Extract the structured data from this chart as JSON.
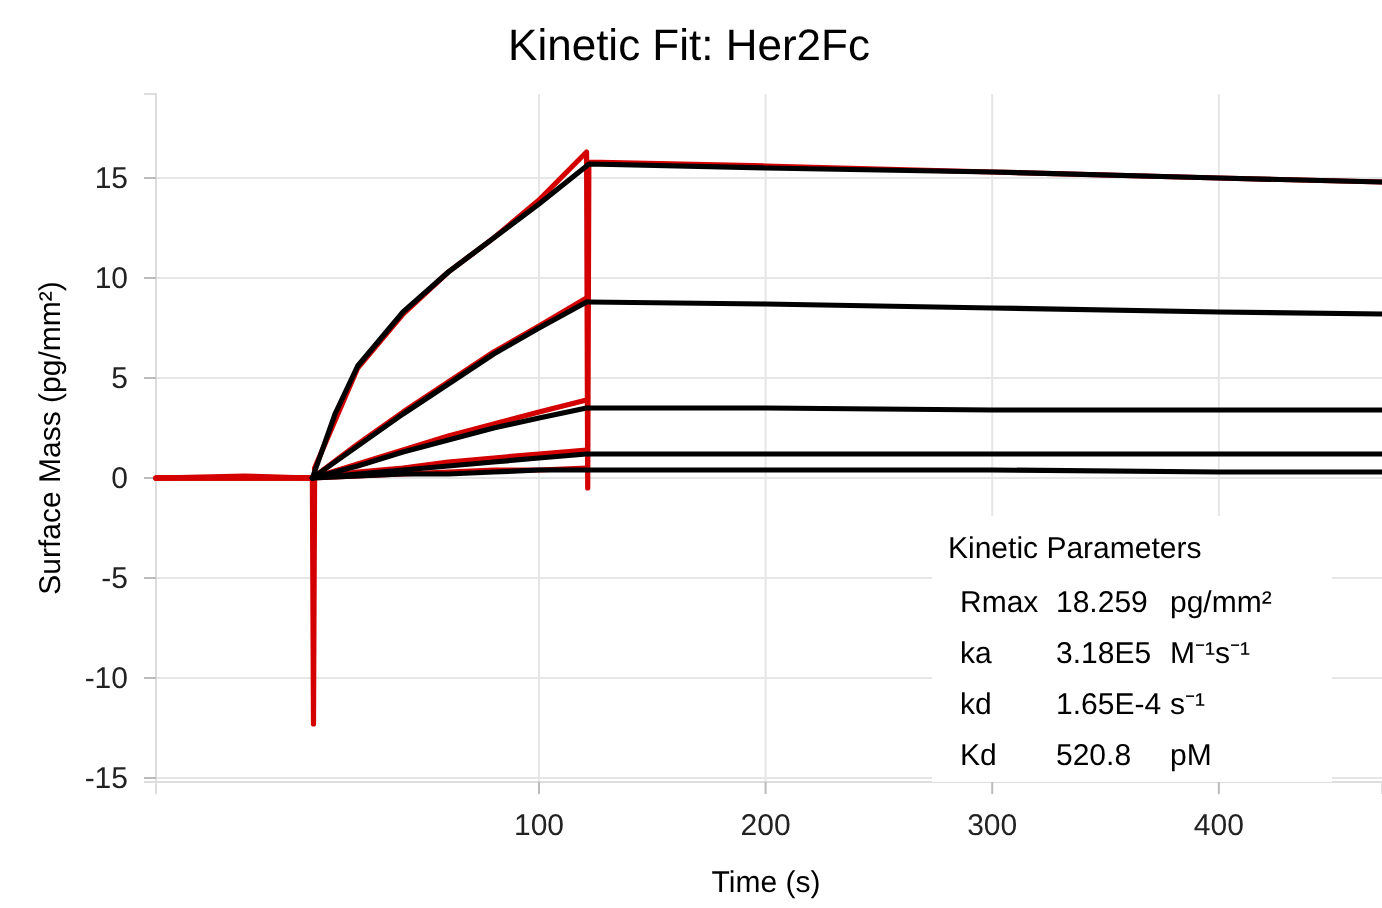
{
  "chart_data": {
    "type": "line",
    "title": "Kinetic Fit: Her2Fc",
    "xlabel": "Time (s)",
    "ylabel": "Surface Mass (pg/mm²)",
    "xlim": [
      -69,
      472
    ],
    "ylim": [
      -15.2,
      19.2
    ],
    "xticks": [
      100,
      200,
      300,
      400
    ],
    "yticks": [
      -15,
      -10,
      -5,
      0,
      5,
      10,
      15
    ],
    "grid": true,
    "marker": "none",
    "line_style": "solid",
    "series": [
      {
        "color": "#d40000",
        "x": [
          -69,
          -30,
          0,
          0.5,
          1,
          20,
          40,
          60,
          80,
          100,
          121,
          121.5,
          122,
          200,
          300,
          400,
          472
        ],
        "values": [
          0,
          0.1,
          0,
          -12.3,
          0.5,
          5.5,
          8.2,
          10.3,
          12.0,
          13.9,
          16.3,
          -0.5,
          15.8,
          15.6,
          15.3,
          15.0,
          14.8
        ]
      },
      {
        "color": "#d40000",
        "x": [
          -69,
          0,
          20,
          40,
          60,
          80,
          100,
          121
        ],
        "values": [
          0,
          0,
          1.7,
          3.3,
          4.8,
          6.3,
          7.6,
          9.0
        ]
      },
      {
        "color": "#d40000",
        "x": [
          -69,
          0,
          20,
          40,
          60,
          80,
          100,
          121
        ],
        "values": [
          0,
          0,
          0.7,
          1.4,
          2.1,
          2.7,
          3.3,
          3.9
        ]
      },
      {
        "color": "#d40000",
        "x": [
          -69,
          0,
          20,
          40,
          60,
          80,
          100,
          121
        ],
        "values": [
          0,
          0,
          0.3,
          0.5,
          0.8,
          1.0,
          1.2,
          1.4
        ]
      },
      {
        "color": "#d40000",
        "x": [
          -69,
          0,
          20,
          40,
          60,
          80,
          100,
          121
        ],
        "values": [
          0,
          0,
          0.1,
          0.2,
          0.3,
          0.4,
          0.4,
          0.5
        ]
      },
      {
        "color": "#000000",
        "x": [
          0,
          10,
          20,
          40,
          60,
          80,
          100,
          121,
          122,
          200,
          300,
          400,
          472
        ],
        "values": [
          0,
          3.2,
          5.6,
          8.3,
          10.3,
          12.0,
          13.7,
          15.6,
          15.7,
          15.5,
          15.3,
          15.0,
          14.8
        ]
      },
      {
        "color": "#000000",
        "x": [
          0,
          20,
          40,
          60,
          80,
          100,
          121,
          122,
          200,
          300,
          400,
          472
        ],
        "values": [
          0,
          1.6,
          3.2,
          4.7,
          6.2,
          7.5,
          8.8,
          8.8,
          8.7,
          8.5,
          8.3,
          8.2
        ]
      },
      {
        "color": "#000000",
        "x": [
          0,
          20,
          40,
          60,
          80,
          100,
          121,
          122,
          200,
          300,
          400,
          472
        ],
        "values": [
          0,
          0.6,
          1.3,
          1.9,
          2.5,
          3.0,
          3.5,
          3.5,
          3.5,
          3.4,
          3.4,
          3.4
        ]
      },
      {
        "color": "#000000",
        "x": [
          0,
          20,
          40,
          60,
          80,
          100,
          121,
          122,
          200,
          300,
          400,
          472
        ],
        "values": [
          0,
          0.2,
          0.4,
          0.6,
          0.8,
          1.0,
          1.2,
          1.2,
          1.2,
          1.2,
          1.2,
          1.2
        ]
      },
      {
        "color": "#000000",
        "x": [
          0,
          20,
          40,
          60,
          80,
          100,
          121,
          122,
          200,
          300,
          400,
          472
        ],
        "values": [
          0,
          0.1,
          0.2,
          0.2,
          0.3,
          0.4,
          0.4,
          0.4,
          0.4,
          0.4,
          0.3,
          0.3
        ]
      }
    ],
    "annotations": [
      "Kinetic Parameters",
      "Rmax",
      "18.259",
      "pg/mm²",
      "ka",
      "3.18E5",
      "M⁻¹s⁻¹",
      "kd",
      "1.65E-4",
      "s⁻¹",
      "Kd",
      "520.8",
      "pM"
    ]
  }
}
